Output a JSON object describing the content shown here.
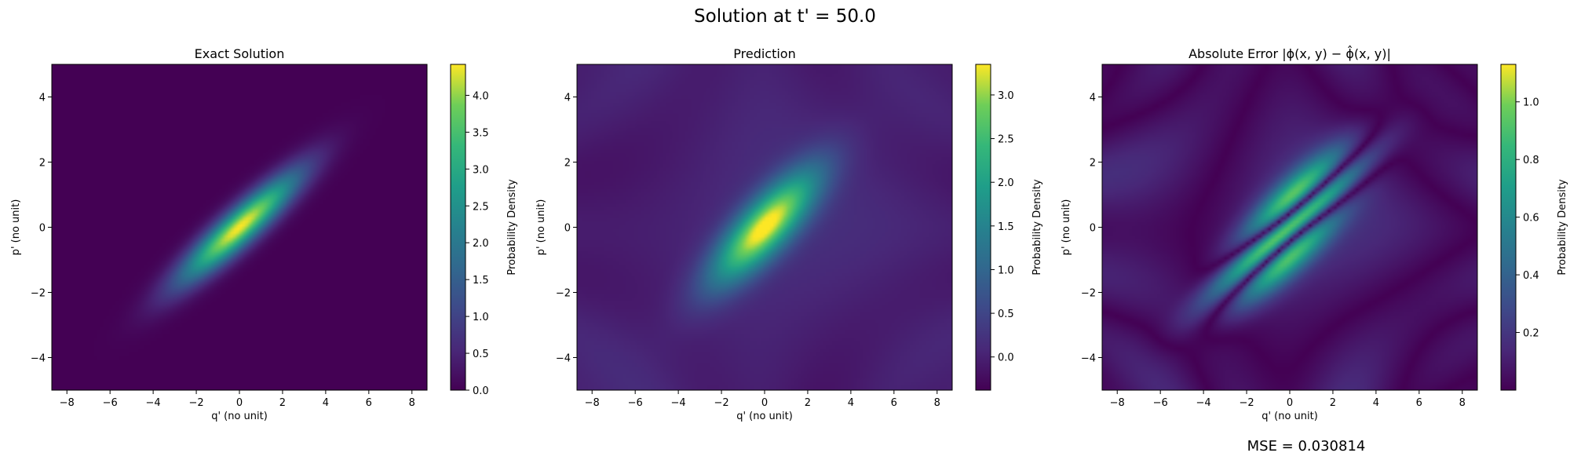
{
  "figure": {
    "suptitle": "Solution at t' = 50.0",
    "mse_label": "MSE = 0.030814"
  },
  "chart_data": [
    {
      "type": "heatmap",
      "title": "Exact Solution",
      "xlabel": "q' (no unit)",
      "ylabel": "p' (no unit)",
      "xlim": [
        -8.7,
        8.7
      ],
      "ylim": [
        -5,
        5
      ],
      "xticks": [
        "−8",
        "−6",
        "−4",
        "−2",
        "0",
        "2",
        "4",
        "6",
        "8"
      ],
      "xtick_values": [
        -8,
        -6,
        -4,
        -2,
        0,
        2,
        4,
        6,
        8
      ],
      "yticks": [
        "−4",
        "−2",
        "0",
        "2",
        "4"
      ],
      "ytick_values": [
        -4,
        -2,
        0,
        2,
        4
      ],
      "colormap": "viridis",
      "colorbar": {
        "label": "Probability Density",
        "range": [
          0.0,
          4.42
        ],
        "ticks": [
          "0.0",
          "0.5",
          "1.0",
          "1.5",
          "2.0",
          "2.5",
          "3.0",
          "3.5",
          "4.0"
        ],
        "tick_values": [
          0.0,
          0.5,
          1.0,
          1.5,
          2.0,
          2.5,
          3.0,
          3.5,
          4.0
        ]
      },
      "field": {
        "kind": "tilted-gaussian",
        "peak": 4.42,
        "baseline": 0.0,
        "major_sigma": 2.2,
        "minor_sigma": 0.42,
        "angle_deg": 30
      }
    },
    {
      "type": "heatmap",
      "title": "Prediction",
      "xlabel": "q' (no unit)",
      "ylabel": "p' (no unit)",
      "xlim": [
        -8.7,
        8.7
      ],
      "ylim": [
        -5,
        5
      ],
      "xticks": [
        "−8",
        "−6",
        "−4",
        "−2",
        "0",
        "2",
        "4",
        "6",
        "8"
      ],
      "xtick_values": [
        -8,
        -6,
        -4,
        -2,
        0,
        2,
        4,
        6,
        8
      ],
      "yticks": [
        "−4",
        "−2",
        "0",
        "2",
        "4"
      ],
      "ytick_values": [
        -4,
        -2,
        0,
        2,
        4
      ],
      "colormap": "viridis",
      "colorbar": {
        "label": "Probability Density",
        "range": [
          -0.38,
          3.35
        ],
        "ticks": [
          "0.0",
          "0.5",
          "1.0",
          "1.5",
          "2.0",
          "2.5",
          "3.0"
        ],
        "tick_values": [
          0.0,
          0.5,
          1.0,
          1.5,
          2.0,
          2.5,
          3.0
        ]
      },
      "field": {
        "kind": "tilted-gaussian-with-background",
        "peak": 3.35,
        "baseline": 0.0,
        "major_sigma": 2.0,
        "minor_sigma": 0.62,
        "angle_deg": 33
      }
    },
    {
      "type": "heatmap",
      "title": "Absolute Error |ϕ(x, y) − ϕ̂(x, y)|",
      "xlabel": "q' (no unit)",
      "ylabel": "p' (no unit)",
      "xlim": [
        -8.7,
        8.7
      ],
      "ylim": [
        -5,
        5
      ],
      "xticks": [
        "−8",
        "−6",
        "−4",
        "−2",
        "0",
        "2",
        "4",
        "6",
        "8"
      ],
      "xtick_values": [
        -8,
        -6,
        -4,
        -2,
        0,
        2,
        4,
        6,
        8
      ],
      "yticks": [
        "−4",
        "−2",
        "0",
        "2",
        "4"
      ],
      "ytick_values": [
        -4,
        -2,
        0,
        2,
        4
      ],
      "colormap": "viridis",
      "colorbar": {
        "label": "Probability Density",
        "range": [
          0.0,
          1.13
        ],
        "ticks": [
          "0.2",
          "0.4",
          "0.6",
          "0.8",
          "1.0"
        ],
        "tick_values": [
          0.2,
          0.4,
          0.6,
          0.8,
          1.0
        ]
      },
      "field": {
        "kind": "absolute-difference",
        "peak": 1.13,
        "baseline": 0.0
      }
    }
  ]
}
